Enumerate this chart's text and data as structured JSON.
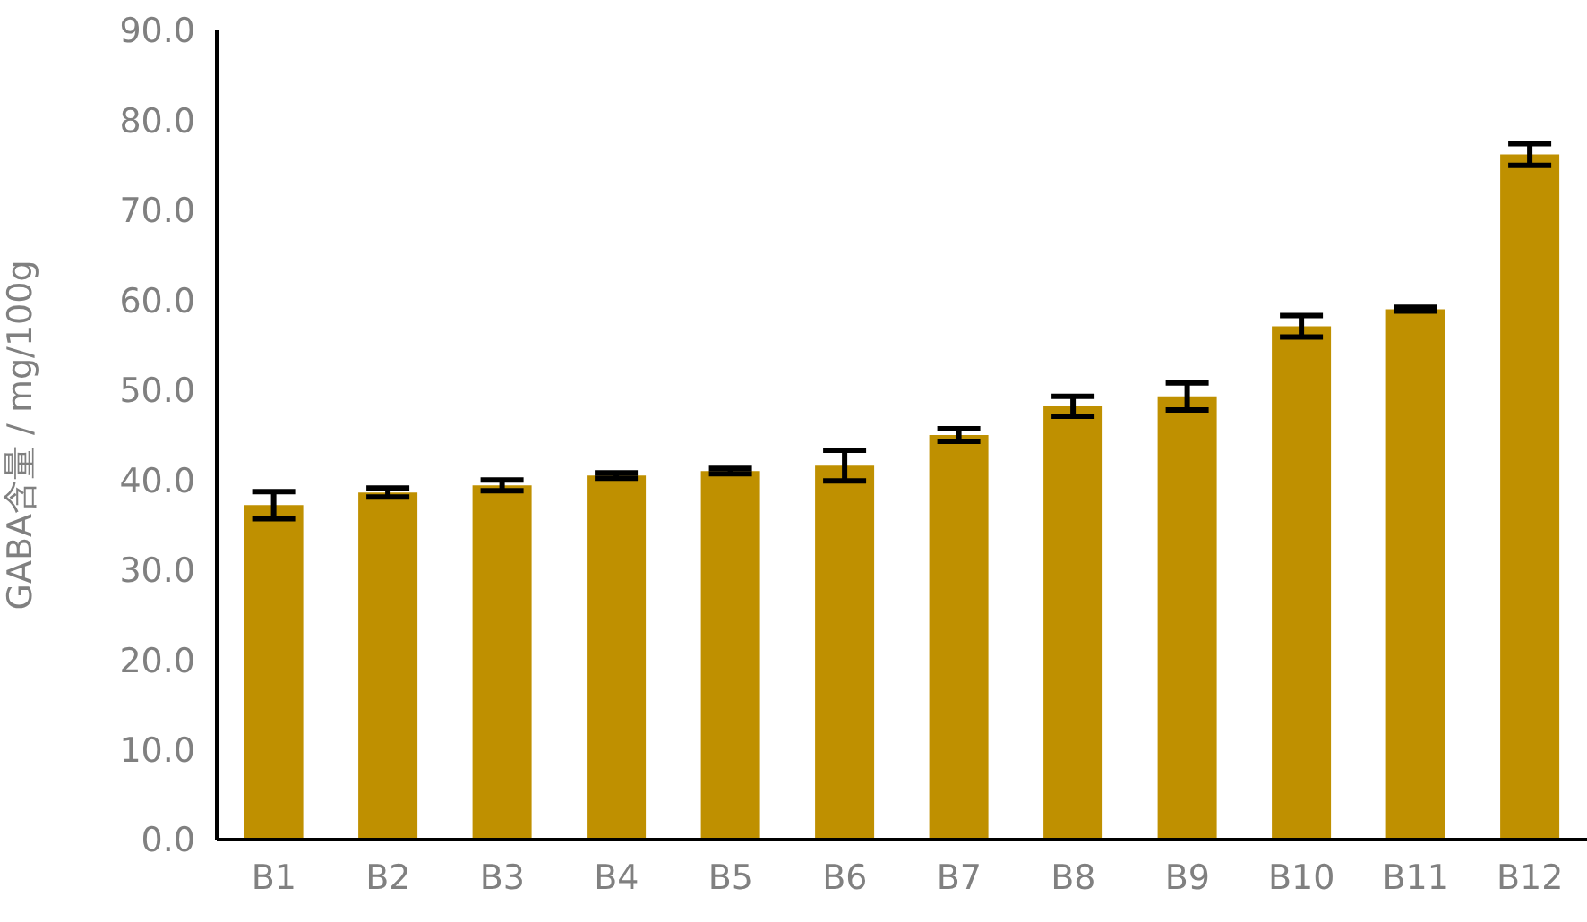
{
  "chart_data": {
    "type": "bar",
    "ylabel": "GABA含量 / mg/100g",
    "categories": [
      "B1",
      "B2",
      "B3",
      "B4",
      "B5",
      "B6",
      "B7",
      "B8",
      "B9",
      "B10",
      "B11",
      "B12"
    ],
    "values": [
      37.2,
      38.6,
      39.4,
      40.5,
      41.0,
      41.6,
      45.0,
      48.2,
      49.3,
      57.1,
      59.0,
      76.2
    ],
    "errors": [
      1.5,
      0.5,
      0.6,
      0.3,
      0.3,
      1.7,
      0.7,
      1.1,
      1.5,
      1.2,
      0.2,
      1.2
    ],
    "color": "#bf9000",
    "ylim": [
      0,
      90
    ],
    "yticks": [
      {
        "value": 0,
        "label": "0.0"
      },
      {
        "value": 10,
        "label": "10.0"
      },
      {
        "value": 20,
        "label": "20.0"
      },
      {
        "value": 30,
        "label": "30.0"
      },
      {
        "value": 40,
        "label": "40.0"
      },
      {
        "value": 50,
        "label": "50.0"
      },
      {
        "value": 60,
        "label": "60.0"
      },
      {
        "value": 70,
        "label": "70.0"
      },
      {
        "value": 80,
        "label": "80.0"
      },
      {
        "value": 90,
        "label": "90.0"
      }
    ],
    "grid": false,
    "legend": false
  }
}
